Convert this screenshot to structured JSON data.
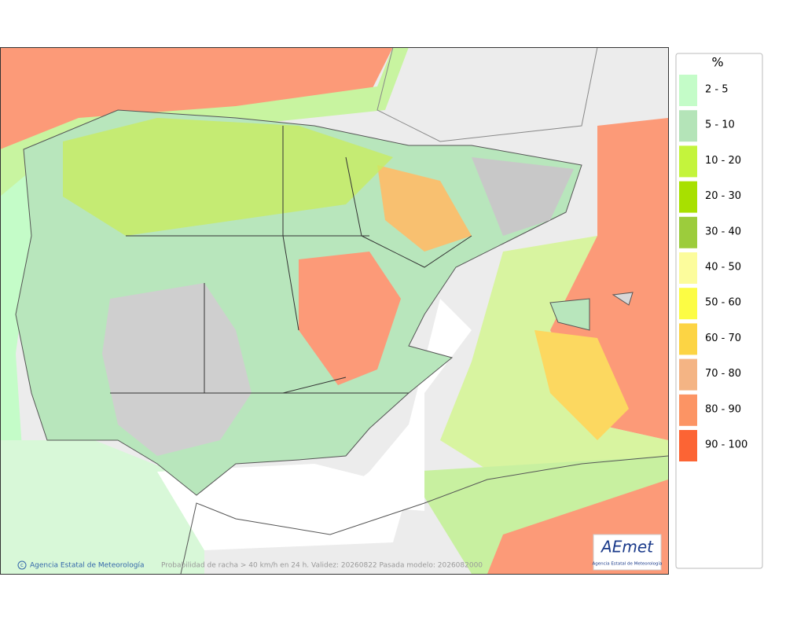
{
  "legend": {
    "title": "%",
    "items": [
      {
        "label": "2 - 5",
        "color": "#c4fcc8"
      },
      {
        "label": "5 - 10",
        "color": "#b4e4b8"
      },
      {
        "label": "10 - 20",
        "color": "#c4f43c"
      },
      {
        "label": "20 - 30",
        "color": "#a8e000"
      },
      {
        "label": "30 - 40",
        "color": "#9ccc3c"
      },
      {
        "label": "40 - 50",
        "color": "#fcfc9c"
      },
      {
        "label": "50 - 60",
        "color": "#fcfc44"
      },
      {
        "label": "60 - 70",
        "color": "#fcd444"
      },
      {
        "label": "70 - 80",
        "color": "#f4b484"
      },
      {
        "label": "80 - 90",
        "color": "#fc9464"
      },
      {
        "label": "90 - 100",
        "color": "#fc6434"
      }
    ]
  },
  "footer": {
    "credit": "Agencia Estatal de Meteorología",
    "caption": "Probabilidad de racha > 40 km/h en 24 h. Validez: 20260822 Pasada modelo: 2026082000"
  },
  "logo": {
    "name": "AEmet",
    "subtitle": "Agencia Estatal de Meteorología"
  }
}
